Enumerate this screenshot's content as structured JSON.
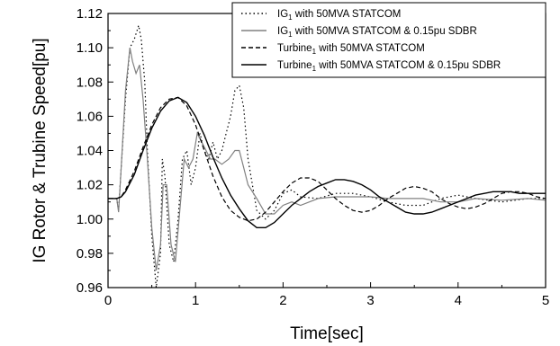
{
  "chart_data": {
    "type": "line",
    "xlabel": "Time[sec]",
    "ylabel": "IG Rotor & Trubine Speed[pu]",
    "xlim": [
      0,
      5
    ],
    "ylim": [
      0.96,
      1.12
    ],
    "x_ticks": [
      "0",
      "1",
      "2",
      "3",
      "4",
      "5"
    ],
    "y_ticks": [
      "0.96",
      "0.98",
      "1.00",
      "1.02",
      "1.04",
      "1.06",
      "1.08",
      "1.10",
      "1.12"
    ],
    "grid": false,
    "legend_position": "top-right",
    "legend": [
      {
        "base": "IG",
        "sub": "1",
        "rest": " with 50MVA STATCOM"
      },
      {
        "base": "IG",
        "sub": "1",
        "rest": " with 50MVA STATCOM & 0.15pu SDBR"
      },
      {
        "base": "Turbine",
        "sub": "1",
        "rest": " with 50MVA STATCOM"
      },
      {
        "base": "Turbine",
        "sub": "1",
        "rest": " with 50MVA STATCOM & 0.15pu SDBR"
      }
    ],
    "series": [
      {
        "name": "IG1 with 50MVA STATCOM",
        "color": "#000000",
        "style": "dotted",
        "points": [
          [
            0.0,
            1.012
          ],
          [
            0.1,
            1.012
          ],
          [
            0.12,
            1.005
          ],
          [
            0.15,
            1.03
          ],
          [
            0.2,
            1.07
          ],
          [
            0.25,
            1.1
          ],
          [
            0.3,
            1.105
          ],
          [
            0.35,
            1.113
          ],
          [
            0.38,
            1.105
          ],
          [
            0.42,
            1.08
          ],
          [
            0.45,
            1.04
          ],
          [
            0.5,
            0.99
          ],
          [
            0.55,
            0.96
          ],
          [
            0.6,
            0.98
          ],
          [
            0.62,
            1.035
          ],
          [
            0.65,
            1.025
          ],
          [
            0.7,
            0.985
          ],
          [
            0.75,
            0.975
          ],
          [
            0.8,
            1.0
          ],
          [
            0.85,
            1.035
          ],
          [
            0.9,
            1.04
          ],
          [
            0.95,
            1.02
          ],
          [
            1.0,
            1.03
          ],
          [
            1.05,
            1.05
          ],
          [
            1.1,
            1.04
          ],
          [
            1.15,
            1.035
          ],
          [
            1.2,
            1.045
          ],
          [
            1.25,
            1.035
          ],
          [
            1.3,
            1.04
          ],
          [
            1.35,
            1.05
          ],
          [
            1.4,
            1.06
          ],
          [
            1.45,
            1.075
          ],
          [
            1.5,
            1.078
          ],
          [
            1.55,
            1.065
          ],
          [
            1.6,
            1.035
          ],
          [
            1.7,
            1.005
          ],
          [
            1.8,
            1.0
          ],
          [
            1.9,
            1.005
          ],
          [
            2.0,
            1.015
          ],
          [
            2.1,
            1.017
          ],
          [
            2.2,
            1.013
          ],
          [
            2.4,
            1.012
          ],
          [
            2.6,
            1.015
          ],
          [
            2.8,
            1.015
          ],
          [
            3.0,
            1.013
          ],
          [
            3.2,
            1.01
          ],
          [
            3.4,
            1.008
          ],
          [
            3.6,
            1.008
          ],
          [
            3.8,
            1.012
          ],
          [
            4.0,
            1.014
          ],
          [
            4.2,
            1.012
          ],
          [
            4.5,
            1.01
          ],
          [
            4.8,
            1.012
          ],
          [
            5.0,
            1.012
          ]
        ]
      },
      {
        "name": "IG1 with 50MVA STATCOM & 0.15pu SDBR",
        "color": "#808080",
        "style": "solid",
        "points": [
          [
            0.0,
            1.012
          ],
          [
            0.1,
            1.012
          ],
          [
            0.12,
            1.004
          ],
          [
            0.15,
            1.03
          ],
          [
            0.2,
            1.075
          ],
          [
            0.25,
            1.1
          ],
          [
            0.28,
            1.092
          ],
          [
            0.32,
            1.085
          ],
          [
            0.36,
            1.09
          ],
          [
            0.4,
            1.07
          ],
          [
            0.45,
            1.035
          ],
          [
            0.5,
            0.995
          ],
          [
            0.55,
            0.97
          ],
          [
            0.6,
            0.985
          ],
          [
            0.63,
            1.02
          ],
          [
            0.67,
            1.02
          ],
          [
            0.72,
            0.985
          ],
          [
            0.77,
            0.975
          ],
          [
            0.82,
            1.005
          ],
          [
            0.87,
            1.035
          ],
          [
            0.92,
            1.03
          ],
          [
            0.97,
            1.035
          ],
          [
            1.02,
            1.05
          ],
          [
            1.07,
            1.045
          ],
          [
            1.12,
            1.04
          ],
          [
            1.17,
            1.035
          ],
          [
            1.22,
            1.035
          ],
          [
            1.3,
            1.032
          ],
          [
            1.38,
            1.035
          ],
          [
            1.45,
            1.04
          ],
          [
            1.5,
            1.04
          ],
          [
            1.55,
            1.03
          ],
          [
            1.6,
            1.02
          ],
          [
            1.7,
            1.012
          ],
          [
            1.8,
            1.003
          ],
          [
            1.9,
            1.003
          ],
          [
            2.0,
            1.008
          ],
          [
            2.1,
            1.01
          ],
          [
            2.2,
            1.008
          ],
          [
            2.4,
            1.012
          ],
          [
            2.6,
            1.013
          ],
          [
            2.8,
            1.013
          ],
          [
            3.0,
            1.013
          ],
          [
            3.2,
            1.012
          ],
          [
            3.4,
            1.012
          ],
          [
            3.6,
            1.012
          ],
          [
            3.8,
            1.01
          ],
          [
            4.0,
            1.01
          ],
          [
            4.2,
            1.012
          ],
          [
            4.5,
            1.011
          ],
          [
            4.8,
            1.012
          ],
          [
            5.0,
            1.011
          ]
        ]
      },
      {
        "name": "Turbine1 with 50MVA STATCOM",
        "color": "#000000",
        "style": "dashed",
        "points": [
          [
            0.0,
            1.012
          ],
          [
            0.1,
            1.012
          ],
          [
            0.15,
            1.013
          ],
          [
            0.2,
            1.017
          ],
          [
            0.3,
            1.028
          ],
          [
            0.4,
            1.042
          ],
          [
            0.5,
            1.055
          ],
          [
            0.6,
            1.065
          ],
          [
            0.7,
            1.07
          ],
          [
            0.8,
            1.071
          ],
          [
            0.9,
            1.066
          ],
          [
            1.0,
            1.055
          ],
          [
            1.1,
            1.04
          ],
          [
            1.2,
            1.025
          ],
          [
            1.3,
            1.013
          ],
          [
            1.4,
            1.005
          ],
          [
            1.5,
            1.001
          ],
          [
            1.6,
            0.999
          ],
          [
            1.7,
            1.0
          ],
          [
            1.8,
            1.004
          ],
          [
            1.9,
            1.01
          ],
          [
            2.0,
            1.016
          ],
          [
            2.1,
            1.021
          ],
          [
            2.2,
            1.024
          ],
          [
            2.3,
            1.024
          ],
          [
            2.4,
            1.022
          ],
          [
            2.5,
            1.017
          ],
          [
            2.6,
            1.012
          ],
          [
            2.7,
            1.008
          ],
          [
            2.8,
            1.005
          ],
          [
            2.9,
            1.004
          ],
          [
            3.0,
            1.005
          ],
          [
            3.1,
            1.008
          ],
          [
            3.2,
            1.012
          ],
          [
            3.3,
            1.015
          ],
          [
            3.4,
            1.018
          ],
          [
            3.5,
            1.019
          ],
          [
            3.6,
            1.018
          ],
          [
            3.7,
            1.016
          ],
          [
            3.8,
            1.012
          ],
          [
            3.9,
            1.009
          ],
          [
            4.0,
            1.007
          ],
          [
            4.1,
            1.006
          ],
          [
            4.2,
            1.007
          ],
          [
            4.3,
            1.009
          ],
          [
            4.4,
            1.012
          ],
          [
            4.5,
            1.015
          ],
          [
            4.6,
            1.016
          ],
          [
            4.7,
            1.016
          ],
          [
            4.8,
            1.015
          ],
          [
            4.9,
            1.013
          ],
          [
            5.0,
            1.012
          ]
        ]
      },
      {
        "name": "Turbine1 with 50MVA STATCOM & 0.15pu SDBR",
        "color": "#000000",
        "style": "solid",
        "points": [
          [
            0.0,
            1.012
          ],
          [
            0.1,
            1.012
          ],
          [
            0.15,
            1.013
          ],
          [
            0.2,
            1.016
          ],
          [
            0.3,
            1.026
          ],
          [
            0.4,
            1.04
          ],
          [
            0.5,
            1.053
          ],
          [
            0.6,
            1.063
          ],
          [
            0.7,
            1.069
          ],
          [
            0.8,
            1.071
          ],
          [
            0.9,
            1.068
          ],
          [
            1.0,
            1.06
          ],
          [
            1.1,
            1.049
          ],
          [
            1.2,
            1.036
          ],
          [
            1.3,
            1.024
          ],
          [
            1.4,
            1.014
          ],
          [
            1.5,
            1.006
          ],
          [
            1.6,
            0.999
          ],
          [
            1.7,
            0.995
          ],
          [
            1.8,
            0.995
          ],
          [
            1.9,
            0.998
          ],
          [
            2.0,
            1.003
          ],
          [
            2.1,
            1.008
          ],
          [
            2.2,
            1.012
          ],
          [
            2.3,
            1.016
          ],
          [
            2.4,
            1.019
          ],
          [
            2.5,
            1.021
          ],
          [
            2.6,
            1.023
          ],
          [
            2.7,
            1.023
          ],
          [
            2.8,
            1.022
          ],
          [
            2.9,
            1.02
          ],
          [
            3.0,
            1.017
          ],
          [
            3.1,
            1.013
          ],
          [
            3.2,
            1.01
          ],
          [
            3.3,
            1.007
          ],
          [
            3.4,
            1.004
          ],
          [
            3.5,
            1.003
          ],
          [
            3.6,
            1.003
          ],
          [
            3.7,
            1.004
          ],
          [
            3.8,
            1.006
          ],
          [
            3.9,
            1.008
          ],
          [
            4.0,
            1.01
          ],
          [
            4.1,
            1.012
          ],
          [
            4.2,
            1.014
          ],
          [
            4.3,
            1.015
          ],
          [
            4.4,
            1.016
          ],
          [
            4.5,
            1.016
          ],
          [
            4.6,
            1.016
          ],
          [
            4.7,
            1.015
          ],
          [
            4.8,
            1.015
          ],
          [
            4.9,
            1.015
          ],
          [
            5.0,
            1.015
          ]
        ]
      }
    ]
  }
}
